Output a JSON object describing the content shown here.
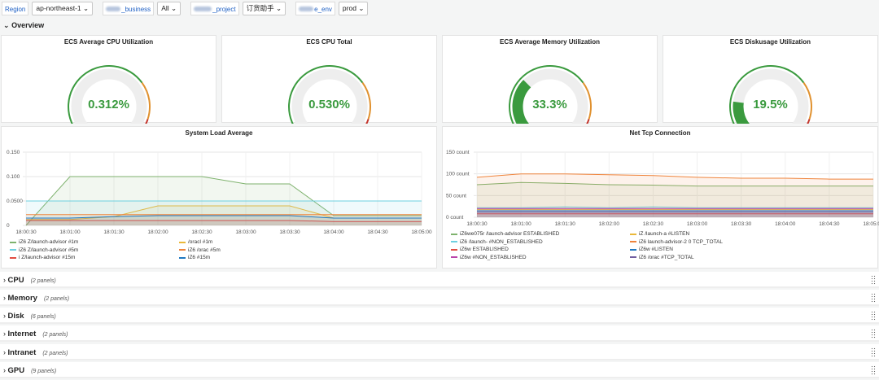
{
  "variables": {
    "region_label": "Region",
    "region_value": "ap-northeast-1",
    "business_label": "_business",
    "business_value": "All",
    "project_label": "_project",
    "project_value": "订货助手",
    "env_label": "e_env",
    "env_value": "prod"
  },
  "overview": {
    "label": "Overview"
  },
  "gauges": [
    {
      "title": "ECS Average CPU Utilization",
      "value": "0.312%",
      "fraction": 0.00312
    },
    {
      "title": "ECS CPU Total",
      "value": "0.530%",
      "fraction": 0.0053
    },
    {
      "title": "ECS Average Memory Utilization",
      "value": "33.3%",
      "fraction": 0.333
    },
    {
      "title": "ECS Diskusage Utilization",
      "value": "19.5%",
      "fraction": 0.195
    }
  ],
  "colors": {
    "green": "#3a9a3e",
    "orange": "#e0912f",
    "red": "#c4362d",
    "track": "#eeeeee"
  },
  "chart_data": [
    {
      "type": "area",
      "title": "System Load Average",
      "x": [
        "18:00:30",
        "18:01:00",
        "18:01:30",
        "18:02:00",
        "18:02:30",
        "18:03:00",
        "18:03:30",
        "18:04:00",
        "18:04:30",
        "18:05:00"
      ],
      "ylim": [
        0,
        0.15
      ],
      "yticks": [
        "0.150",
        "0.100",
        "0.0500",
        "0"
      ],
      "series": [
        {
          "name": "#1m",
          "color": "#7eb26d",
          "values": [
            0,
            0.1,
            0.1,
            0.1,
            0.1,
            0.085,
            0.085,
            0.02,
            0.02,
            0.02
          ]
        },
        {
          "name": "#1m",
          "color": "#eab839",
          "values": [
            0.012,
            0.012,
            0.018,
            0.04,
            0.04,
            0.04,
            0.04,
            0.015,
            0.015,
            0.015
          ]
        },
        {
          "name": "#5m",
          "color": "#6ed0e0",
          "values": [
            0.05,
            0.05,
            0.05,
            0.05,
            0.05,
            0.05,
            0.05,
            0.05,
            0.05,
            0.05
          ]
        },
        {
          "name": "#5m",
          "color": "#ef843c",
          "values": [
            0.022,
            0.022,
            0.022,
            0.022,
            0.022,
            0.022,
            0.022,
            0.022,
            0.022,
            0.022
          ]
        },
        {
          "name": "#15m",
          "color": "#e24d42",
          "values": [
            0.01,
            0.01,
            0.01,
            0.01,
            0.01,
            0.01,
            0.01,
            0.008,
            0.008,
            0.008
          ]
        },
        {
          "name": "#15m",
          "color": "#1f78c1",
          "values": [
            0.015,
            0.015,
            0.018,
            0.02,
            0.02,
            0.02,
            0.02,
            0.015,
            0.015,
            0.015
          ]
        }
      ],
      "legend": [
        "iZ6 Z/launch-advisor #1m",
        "/oracl #1m",
        "iZ6 Z/launch-advisor #5m",
        "iZ6 /orac #5m",
        "i Z/launch-advisor #15m",
        "iZ6 #15m"
      ]
    },
    {
      "type": "area",
      "title": "Net Tcp Connection",
      "x": [
        "18:00:30",
        "18:01:00",
        "18:01:30",
        "18:02:00",
        "18:02:30",
        "18:03:00",
        "18:03:30",
        "18:04:00",
        "18:04:30",
        "18:05:00"
      ],
      "ylim": [
        0,
        150
      ],
      "yticks": [
        "150 count",
        "100 count",
        "50 count",
        "0 count"
      ],
      "series": [
        {
          "name": "ESTABLISHED",
          "color": "#7eb26d",
          "values": [
            75,
            80,
            78,
            75,
            74,
            72,
            72,
            72,
            72,
            72
          ]
        },
        {
          "name": "LISTEN",
          "color": "#eab839",
          "values": [
            18,
            18,
            18,
            18,
            18,
            18,
            18,
            18,
            18,
            18
          ]
        },
        {
          "name": "NON_ESTABLISHED",
          "color": "#6ed0e0",
          "values": [
            22,
            22,
            24,
            22,
            24,
            22,
            22,
            22,
            22,
            22
          ]
        },
        {
          "name": "TCP_TOTAL",
          "color": "#ef843c",
          "values": [
            92,
            100,
            100,
            98,
            96,
            92,
            90,
            90,
            88,
            88
          ]
        },
        {
          "name": "ESTABLISHED",
          "color": "#e24d42",
          "values": [
            8,
            8,
            8,
            8,
            8,
            8,
            8,
            8,
            8,
            8
          ]
        },
        {
          "name": "LISTEN",
          "color": "#1f78c1",
          "values": [
            15,
            15,
            15,
            15,
            15,
            15,
            15,
            15,
            15,
            15
          ]
        },
        {
          "name": "NON_ESTABLISHED",
          "color": "#ba43a9",
          "values": [
            20,
            20,
            20,
            20,
            20,
            20,
            20,
            20,
            20,
            20
          ]
        },
        {
          "name": "TCP_TOTAL",
          "color": "#705da0",
          "values": [
            12,
            12,
            12,
            12,
            12,
            12,
            12,
            12,
            12,
            12
          ]
        }
      ],
      "legend": [
        "iZ6we075r /launch-advisor ESTABLISHED",
        "iZ /launch-a #LISTEN",
        "iZ6 /launch- #NON_ESTABLISHED",
        "iZ6 launch-advisor-2 0 TCP_TOTAL",
        "iZ6w ESTABLISHED",
        "iZ6w #LISTEN",
        "iZ6w #NON_ESTABLISHED",
        "iZ6 /orac #TCP_TOTAL"
      ]
    }
  ],
  "rows": [
    {
      "label": "CPU",
      "count": "(2 panels)"
    },
    {
      "label": "Memory",
      "count": "(2 panels)"
    },
    {
      "label": "Disk",
      "count": "(6 panels)"
    },
    {
      "label": "Internet",
      "count": "(2 panels)"
    },
    {
      "label": "Intranet",
      "count": "(2 panels)"
    },
    {
      "label": "GPU",
      "count": "(9 panels)"
    }
  ]
}
